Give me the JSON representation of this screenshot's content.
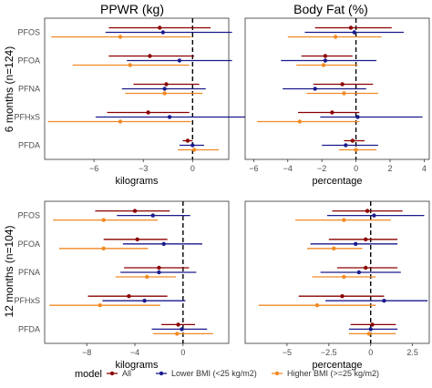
{
  "figure": {
    "legend_title": "model",
    "legend": [
      {
        "label": "All",
        "color": "#8B0000"
      },
      {
        "label": "Lower BMI (<25 kg/m2)",
        "color": "#1A1A8C"
      },
      {
        "label": "Higher BMI (>=25 kg/m2)",
        "color": "#F08A24"
      }
    ],
    "rows": [
      {
        "strip": "6 months (n=124)"
      },
      {
        "strip": "12 months (n=104)"
      }
    ],
    "columns": [
      "PPWR (kg)",
      "Body Fat (%)"
    ],
    "categories": [
      "PFOS",
      "PFOA",
      "PFNA",
      "PFHxS",
      "PFDA"
    ]
  },
  "chart_data": [
    {
      "type": "forest",
      "row": 0,
      "col": 0,
      "title": "PPWR (kg)",
      "xlabel": "kilograms",
      "xlim": [
        -9,
        2.2
      ],
      "xticks": [
        -6,
        -3,
        0
      ],
      "categories": [
        "PFOS",
        "PFOA",
        "PFNA",
        "PFHxS",
        "PFDA"
      ],
      "series": [
        {
          "name": "All",
          "estimate": [
            -2.0,
            -2.6,
            -1.6,
            -2.7,
            -0.3
          ],
          "lower": [
            -5.1,
            -5.1,
            -3.6,
            -5.2,
            -0.6
          ],
          "upper": [
            1.1,
            0.1,
            0.4,
            -0.2,
            0.0
          ]
        },
        {
          "name": "Lower BMI (<25 kg/m2)",
          "estimate": [
            -1.8,
            -0.8,
            -1.7,
            -1.4,
            0.0
          ],
          "lower": [
            -5.3,
            -4.0,
            -4.3,
            -5.9,
            -0.8
          ],
          "upper": [
            2.4,
            2.4,
            0.8,
            3.5,
            0.7
          ]
        },
        {
          "name": "Higher BMI (>=25 kg/m2)",
          "estimate": [
            -4.4,
            -3.8,
            -1.7,
            -4.4,
            0.1
          ],
          "lower": [
            -8.6,
            -7.3,
            -4.1,
            -8.8,
            -0.9
          ],
          "upper": [
            -0.1,
            -0.2,
            0.6,
            -0.1,
            1.6
          ]
        }
      ]
    },
    {
      "type": "forest",
      "row": 0,
      "col": 1,
      "title": "Body Fat (%)",
      "xlabel": "percentage",
      "xlim": [
        -6.5,
        4.3
      ],
      "xticks": [
        -6,
        -4,
        -2,
        0,
        2,
        4
      ],
      "categories": [
        "PFOS",
        "PFOA",
        "PFNA",
        "PFHxS",
        "PFDA"
      ],
      "series": [
        {
          "name": "All",
          "estimate": [
            -0.3,
            -1.8,
            -0.8,
            -1.4,
            -0.2
          ],
          "lower": [
            -2.4,
            -3.2,
            -2.5,
            -3.4,
            -0.7
          ],
          "upper": [
            2.1,
            -0.2,
            1.0,
            0.2,
            0.5
          ]
        },
        {
          "name": "Lower BMI (<25 kg/m2)",
          "estimate": [
            -0.1,
            -1.8,
            -2.4,
            0.1,
            -0.6
          ],
          "lower": [
            -3.0,
            -4.4,
            -4.3,
            -2.1,
            -2.0
          ],
          "upper": [
            2.8,
            1.2,
            0.6,
            3.9,
            1.3
          ]
        },
        {
          "name": "Higher BMI (>=25 kg/m2)",
          "estimate": [
            -1.2,
            -1.9,
            -0.7,
            -3.3,
            0.0
          ],
          "lower": [
            -4.0,
            -3.5,
            -2.9,
            -5.8,
            -1.0
          ],
          "upper": [
            1.5,
            0.1,
            1.3,
            0.2,
            1.2
          ]
        }
      ]
    },
    {
      "type": "forest",
      "row": 1,
      "col": 0,
      "title": "",
      "xlabel": "kilograms",
      "xlim": [
        -11.5,
        3.8
      ],
      "xticks": [
        -8,
        -4,
        0
      ],
      "categories": [
        "PFOS",
        "PFOA",
        "PFNA",
        "PFHxS",
        "PFDA"
      ],
      "series": [
        {
          "name": "All",
          "estimate": [
            -4.0,
            -3.8,
            -2.0,
            -4.5,
            -0.4
          ],
          "lower": [
            -7.3,
            -6.6,
            -4.9,
            -7.9,
            -1.8
          ],
          "upper": [
            -1.1,
            -1.3,
            0.5,
            -1.3,
            1.0
          ]
        },
        {
          "name": "Lower BMI (<25 kg/m2)",
          "estimate": [
            -2.5,
            -1.6,
            -2.0,
            -3.2,
            -0.1
          ],
          "lower": [
            -5.5,
            -5.0,
            -5.2,
            -6.7,
            -2.6
          ],
          "upper": [
            0.6,
            1.6,
            1.1,
            0.2,
            2.0
          ]
        },
        {
          "name": "Higher BMI (>=25 kg/m2)",
          "estimate": [
            -6.6,
            -6.6,
            -3.0,
            -6.9,
            -0.5
          ],
          "lower": [
            -10.8,
            -10.3,
            -5.6,
            -11.1,
            -2.5
          ],
          "upper": [
            -2.1,
            -2.9,
            -0.6,
            -1.9,
            2.5
          ]
        }
      ]
    },
    {
      "type": "forest",
      "row": 1,
      "col": 1,
      "title": "",
      "xlabel": "percentage",
      "xlim": [
        -7.5,
        3.5
      ],
      "xticks": [
        -5,
        -2.5,
        0,
        2.5
      ],
      "categories": [
        "PFOS",
        "PFOA",
        "PFNA",
        "PFHxS",
        "PFDA"
      ],
      "series": [
        {
          "name": "All",
          "estimate": [
            -0.2,
            -0.3,
            -0.3,
            -1.7,
            0.1
          ],
          "lower": [
            -2.3,
            -2.5,
            -2.0,
            -4.3,
            -1.2
          ],
          "upper": [
            1.9,
            1.6,
            1.6,
            0.8,
            1.5
          ]
        },
        {
          "name": "Lower BMI (<25 kg/m2)",
          "estimate": [
            0.2,
            -0.9,
            -0.7,
            0.8,
            0.0
          ],
          "lower": [
            -2.6,
            -3.6,
            -3.0,
            -2.7,
            -1.3
          ],
          "upper": [
            3.2,
            1.6,
            1.8,
            3.4,
            1.6
          ]
        },
        {
          "name": "Higher BMI (>=25 kg/m2)",
          "estimate": [
            -1.6,
            -2.2,
            -1.6,
            -3.2,
            -0.1
          ],
          "lower": [
            -4.5,
            -3.8,
            -3.5,
            -6.7,
            -1.3
          ],
          "upper": [
            1.2,
            -0.5,
            0.3,
            0.3,
            1.5
          ]
        }
      ]
    }
  ]
}
